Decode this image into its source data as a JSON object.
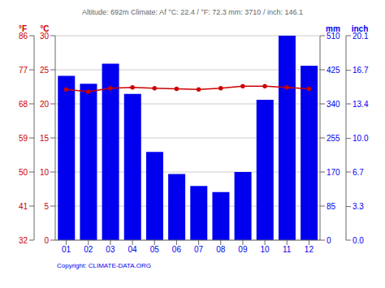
{
  "chart_data": {
    "type": "bar",
    "title": "Altitude: 692m       Climate: Af           °C: 22.4 / °F: 72.3    mm: 3710 / inch: 146.1",
    "annotations": [
      "Copyright: CLIMATE-DATA.ORG"
    ],
    "categories": [
      "01",
      "02",
      "03",
      "04",
      "05",
      "06",
      "07",
      "08",
      "09",
      "10",
      "11",
      "12"
    ],
    "series": [
      {
        "type": "bar",
        "color": "#0000ee",
        "axis": "y2",
        "values": [
          410,
          390,
          440,
          365,
          220,
          165,
          135,
          120,
          170,
          350,
          510,
          435
        ]
      },
      {
        "type": "line",
        "color": "#cc0000",
        "marker": "circle",
        "values": [
          22.1,
          21.8,
          22.3,
          22.4,
          22.3,
          22.2,
          22.1,
          22.3,
          22.6,
          22.6,
          22.4,
          22.2
        ]
      }
    ],
    "y_label": "°C",
    "ylim": [
      0,
      30
    ],
    "yticks": [
      0,
      5,
      10,
      15,
      20,
      25,
      30
    ],
    "y2_label": "mm",
    "y2lim": [
      0,
      510
    ],
    "y2ticks": [
      0,
      85,
      170,
      255,
      340,
      425,
      510
    ],
    "y3_label": "°F",
    "y3lim": [
      32,
      86
    ],
    "y3ticks": [
      32,
      41,
      50,
      59,
      68,
      77,
      86
    ],
    "y4_label": "inch",
    "y4lim": [
      0,
      20.1
    ],
    "y4ticks": [
      {
        "value": 0,
        "label": "0.0"
      },
      3.3,
      6.7,
      {
        "value": 10,
        "label": "10.0"
      },
      13.4,
      16.7,
      20.1
    ],
    "grid": true
  }
}
